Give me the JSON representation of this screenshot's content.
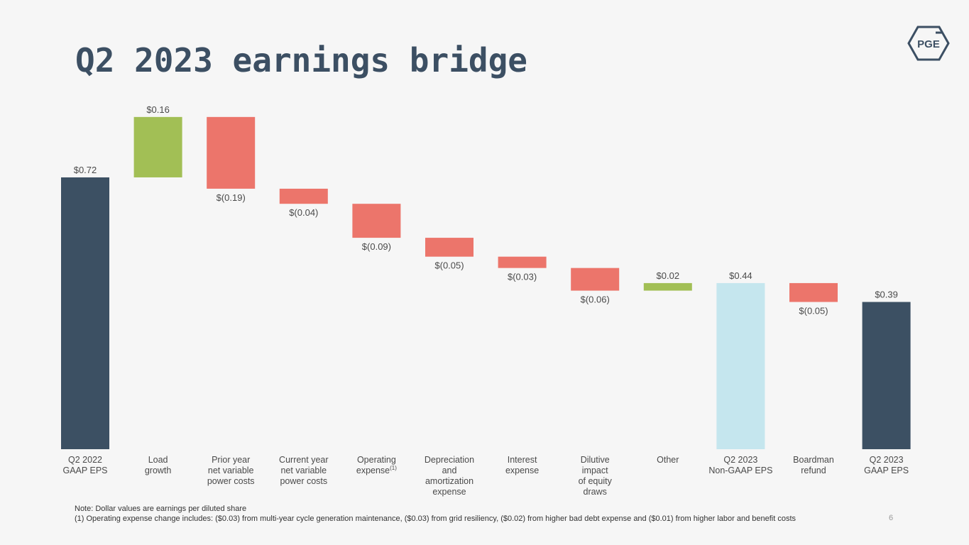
{
  "title": "Q2 2023 earnings bridge",
  "logo_text": "PGE",
  "page_number": "6",
  "note": "Note: Dollar values are earnings per diluted share",
  "footnote": "(1) Operating expense change includes: ($0.03) from multi-year cycle generation maintenance, ($0.03) from grid resiliency, ($0.02) from higher bad debt expense and ($0.01) from higher labor and benefit costs",
  "colors": {
    "total_dark": "#3c5063",
    "total_light": "#c5e6ee",
    "increase": "#a2bf55",
    "decrease": "#ec756b",
    "title": "#3c4f63",
    "label": "#4a4a4a"
  },
  "chart_data": {
    "type": "waterfall",
    "title": "Q2 2023 earnings bridge",
    "units": "earnings per diluted share ($)",
    "ylim": [
      0,
      0.9
    ],
    "bars": [
      {
        "label": "Q2 2022\nGAAP EPS",
        "value": 0.72,
        "base": 0,
        "top": 0.72,
        "kind": "total_dark",
        "value_label": "$0.72",
        "superscript": ""
      },
      {
        "label": "Load\ngrowth",
        "value": 0.16,
        "base": 0.72,
        "top": 0.88,
        "kind": "increase",
        "value_label": "$0.16",
        "superscript": ""
      },
      {
        "label": "Prior year\nnet variable\npower costs",
        "value": -0.19,
        "base": 0.88,
        "top": 0.69,
        "kind": "decrease",
        "value_label": "$(0.19)",
        "superscript": ""
      },
      {
        "label": "Current year\nnet variable\npower costs",
        "value": -0.04,
        "base": 0.69,
        "top": 0.65,
        "kind": "decrease",
        "value_label": "$(0.04)",
        "superscript": ""
      },
      {
        "label": "Operating\nexpense",
        "value": -0.09,
        "base": 0.65,
        "top": 0.56,
        "kind": "decrease",
        "value_label": "$(0.09)",
        "superscript": "(1)"
      },
      {
        "label": "Depreciation\nand\namortization\nexpense",
        "value": -0.05,
        "base": 0.56,
        "top": 0.51,
        "kind": "decrease",
        "value_label": "$(0.05)",
        "superscript": ""
      },
      {
        "label": "Interest\nexpense",
        "value": -0.03,
        "base": 0.51,
        "top": 0.48,
        "kind": "decrease",
        "value_label": "$(0.03)",
        "superscript": ""
      },
      {
        "label": "Dilutive\nimpact\nof equity\ndraws",
        "value": -0.06,
        "base": 0.48,
        "top": 0.42,
        "kind": "decrease",
        "value_label": "$(0.06)",
        "superscript": ""
      },
      {
        "label": "Other",
        "value": 0.02,
        "base": 0.42,
        "top": 0.44,
        "kind": "increase",
        "value_label": "$0.02",
        "superscript": ""
      },
      {
        "label": "Q2 2023\nNon-GAAP EPS",
        "value": 0.44,
        "base": 0,
        "top": 0.44,
        "kind": "total_light",
        "value_label": "$0.44",
        "superscript": ""
      },
      {
        "label": "Boardman\nrefund",
        "value": -0.05,
        "base": 0.44,
        "top": 0.39,
        "kind": "decrease",
        "value_label": "$(0.05)",
        "superscript": ""
      },
      {
        "label": "Q2 2023\nGAAP EPS",
        "value": 0.39,
        "base": 0,
        "top": 0.39,
        "kind": "total_dark",
        "value_label": "$0.39",
        "superscript": ""
      }
    ]
  }
}
